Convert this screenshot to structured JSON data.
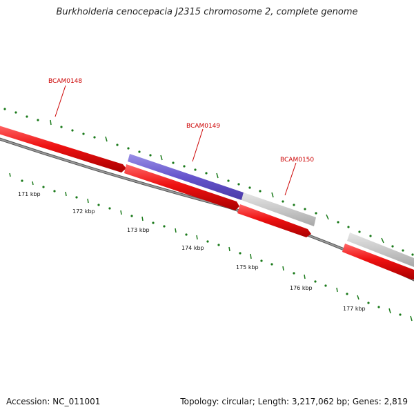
{
  "header": {
    "title": "Burkholderia cenocepacia J2315 chromosome 2, complete genome"
  },
  "footer": {
    "accession": "Accession: NC_011001",
    "summary": "Topology: circular; Length: 3,217,062 bp; Genes: 2,819"
  },
  "map": {
    "backbone_color": "#7a7a7a",
    "tick_color": "#1a7a1a",
    "label_color": "#cc0000",
    "ticks": [
      {
        "label": "171 kbp"
      },
      {
        "label": "172 kbp"
      },
      {
        "label": "173 kbp"
      },
      {
        "label": "174 kbp"
      },
      {
        "label": "175 kbp"
      },
      {
        "label": "176 kbp"
      },
      {
        "label": "177 kbp"
      }
    ],
    "gene_labels": [
      "BCAM0148",
      "BCAM0149",
      "BCAM0150"
    ],
    "feature_colors": {
      "cds": "#ee1111",
      "gene_highlight": "#6655cc",
      "gene_other": "#c8c8c8"
    }
  }
}
